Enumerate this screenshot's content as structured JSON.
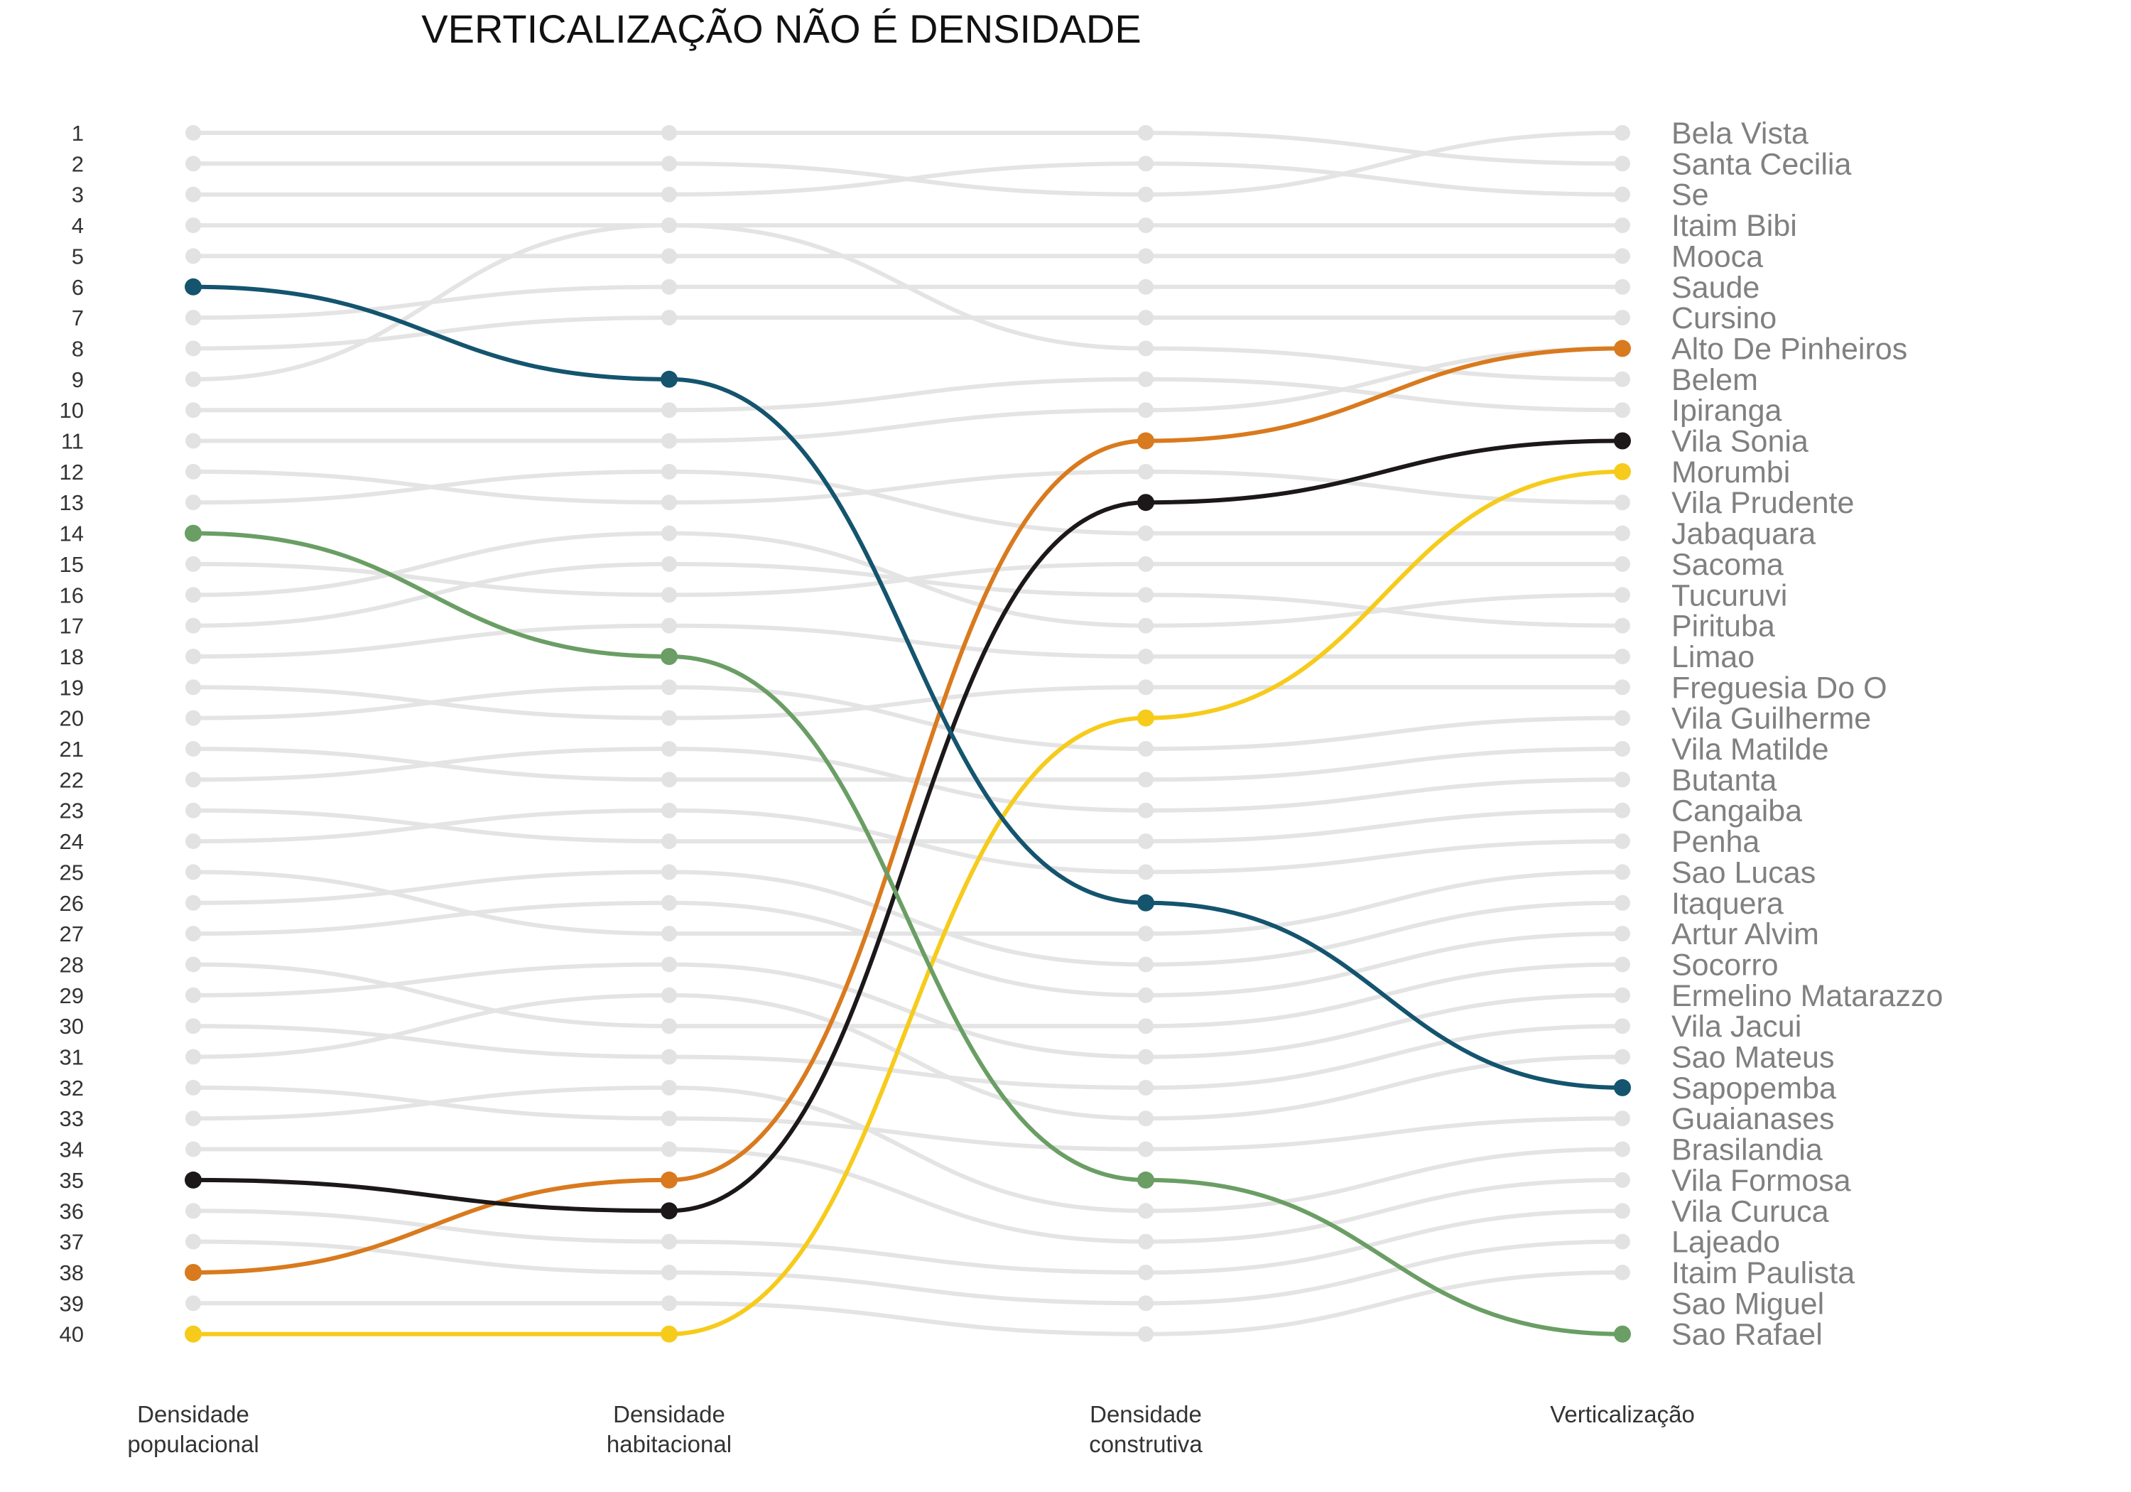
{
  "chart_data": {
    "type": "bump",
    "title": "VERTICALIZAÇÃO NÃO É DENSIDADE",
    "x_labels": [
      [
        "Densidade",
        "populacional"
      ],
      [
        "Densidade",
        "habitacional"
      ],
      [
        "Densidade",
        "construtiva"
      ],
      [
        "Verticalização"
      ]
    ],
    "y_ranks": [
      1,
      2,
      3,
      4,
      5,
      6,
      7,
      8,
      9,
      10,
      11,
      12,
      13,
      14,
      15,
      16,
      17,
      18,
      19,
      20,
      21,
      22,
      23,
      24,
      25,
      26,
      27,
      28,
      29,
      30,
      31,
      32,
      33,
      34,
      35,
      36,
      37,
      38,
      39,
      40
    ],
    "final_order": [
      "Bela Vista",
      "Santa Cecilia",
      "Se",
      "Itaim Bibi",
      "Mooca",
      "Saude",
      "Cursino",
      "Alto De Pinheiros",
      "Belem",
      "Ipiranga",
      "Vila Sonia",
      "Morumbi",
      "Vila Prudente",
      "Jabaquara",
      "Sacoma",
      "Tucuruvi",
      "Pirituba",
      "Limao",
      "Freguesia Do O",
      "Vila Guilherme",
      "Vila Matilde",
      "Butanta",
      "Cangaiba",
      "Penha",
      "Sao Lucas",
      "Itaquera",
      "Artur Alvim",
      "Socorro",
      "Ermelino Matarazzo",
      "Vila Jacui",
      "Sao Mateus",
      "Sapopemba",
      "Guaianases",
      "Brasilandia",
      "Vila Formosa",
      "Vila Curuca",
      "Lajeado",
      "Itaim Paulista",
      "Sao Miguel",
      "Sao Rafael"
    ],
    "highlighted_series": [
      {
        "name": "Alto De Pinheiros",
        "ranks": [
          38,
          35,
          11,
          8
        ],
        "color": "#D97A1E"
      },
      {
        "name": "Vila Sonia",
        "ranks": [
          35,
          36,
          13,
          11
        ],
        "color": "#1C1819"
      },
      {
        "name": "Morumbi",
        "ranks": [
          40,
          40,
          20,
          12
        ],
        "color": "#F6CB1B"
      },
      {
        "name": "Sapopemba",
        "ranks": [
          6,
          9,
          26,
          32
        ],
        "color": "#14546E"
      },
      {
        "name": "Sao Rafael",
        "ranks": [
          14,
          18,
          35,
          40
        ],
        "color": "#6A9E64"
      }
    ],
    "background_series": [
      [
        1,
        1,
        1,
        2
      ],
      [
        2,
        2,
        3,
        1
      ],
      [
        3,
        3,
        2,
        3
      ],
      [
        4,
        4,
        4,
        4
      ],
      [
        5,
        5,
        5,
        5
      ],
      [
        7,
        6,
        6,
        6
      ],
      [
        8,
        7,
        7,
        7
      ],
      [
        9,
        4,
        8,
        9
      ],
      [
        10,
        10,
        9,
        10
      ],
      [
        11,
        11,
        10,
        8
      ],
      [
        12,
        13,
        12,
        13
      ],
      [
        13,
        12,
        14,
        14
      ],
      [
        15,
        16,
        15,
        15
      ],
      [
        16,
        14,
        17,
        16
      ],
      [
        17,
        15,
        16,
        17
      ],
      [
        18,
        17,
        18,
        18
      ],
      [
        19,
        20,
        19,
        19
      ],
      [
        20,
        19,
        21,
        20
      ],
      [
        21,
        22,
        22,
        21
      ],
      [
        22,
        21,
        23,
        22
      ],
      [
        23,
        24,
        24,
        23
      ],
      [
        24,
        23,
        25,
        24
      ],
      [
        25,
        27,
        27,
        25
      ],
      [
        26,
        25,
        28,
        26
      ],
      [
        27,
        26,
        29,
        27
      ],
      [
        28,
        30,
        30,
        28
      ],
      [
        29,
        28,
        31,
        29
      ],
      [
        30,
        31,
        32,
        30
      ],
      [
        31,
        29,
        33,
        31
      ],
      [
        32,
        33,
        34,
        33
      ],
      [
        33,
        32,
        36,
        34
      ],
      [
        34,
        34,
        37,
        35
      ],
      [
        36,
        37,
        38,
        36
      ],
      [
        37,
        38,
        39,
        37
      ],
      [
        39,
        39,
        40,
        38
      ]
    ],
    "colors": {
      "background_line": "#E4E4E4",
      "background_point": "#E2E2E2"
    },
    "grid": false,
    "legend": "none"
  }
}
